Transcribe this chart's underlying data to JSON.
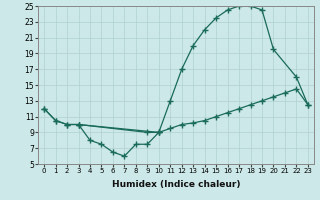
{
  "xlabel": "Humidex (Indice chaleur)",
  "xlim": [
    -0.5,
    23.5
  ],
  "ylim": [
    5,
    25
  ],
  "xticks": [
    0,
    1,
    2,
    3,
    4,
    5,
    6,
    7,
    8,
    9,
    10,
    11,
    12,
    13,
    14,
    15,
    16,
    17,
    18,
    19,
    20,
    21,
    22,
    23
  ],
  "yticks": [
    5,
    7,
    9,
    11,
    13,
    15,
    17,
    19,
    21,
    23,
    25
  ],
  "bg_color": "#cce8e8",
  "grid_color": "#b0d0d0",
  "line_color": "#1a6b5a",
  "line1_x": [
    0,
    1,
    2,
    3,
    10,
    11,
    12,
    13,
    14,
    15,
    16,
    17,
    18,
    19,
    20,
    22,
    23
  ],
  "line1_y": [
    12.0,
    10.5,
    10.0,
    10.0,
    9.0,
    13.0,
    17.0,
    20.0,
    22.0,
    23.5,
    24.5,
    25.0,
    25.0,
    24.5,
    19.5,
    16.0,
    12.5
  ],
  "line2_x": [
    3,
    4,
    5,
    6,
    7,
    8,
    9,
    10
  ],
  "line2_y": [
    10.0,
    8.0,
    7.5,
    6.5,
    6.0,
    7.5,
    7.5,
    9.0
  ],
  "line3_x": [
    0,
    1,
    2,
    3,
    9,
    10,
    11,
    12,
    13,
    14,
    15,
    16,
    17,
    18,
    19,
    20,
    21,
    22,
    23
  ],
  "line3_y": [
    12.0,
    10.5,
    10.0,
    10.0,
    9.0,
    9.0,
    9.5,
    10.0,
    10.2,
    10.5,
    11.0,
    11.5,
    12.0,
    12.5,
    13.0,
    13.5,
    14.0,
    14.5,
    12.5
  ]
}
